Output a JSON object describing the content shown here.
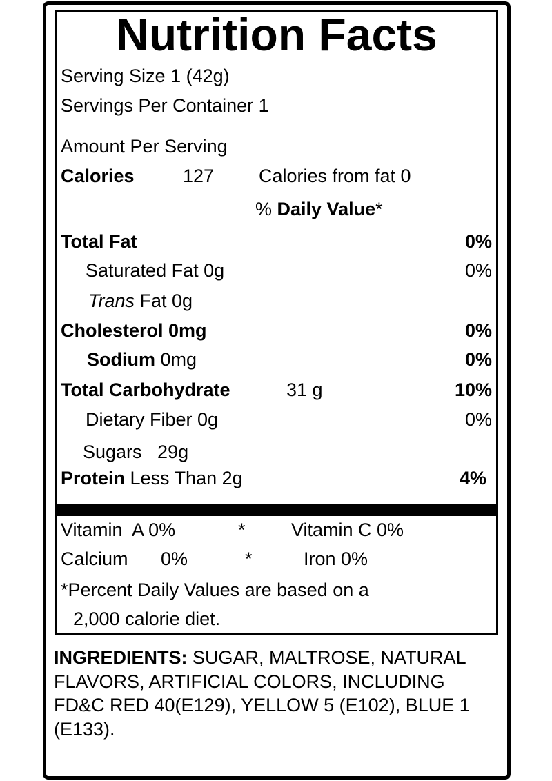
{
  "title": "Nutrition Facts",
  "serving_size": "Serving Size  1 (42g)",
  "servings_per_container": "Servings Per Container 1",
  "amount_per_serving": "Amount Per Serving",
  "calories": {
    "label": "Calories",
    "value": "127",
    "from_fat": "Calories from fat  0"
  },
  "daily_value_header": {
    "prefix": "% ",
    "label": "Daily Value",
    "suffix": "*"
  },
  "nutrients": [
    {
      "label": "Total Fat",
      "amount": "",
      "dv": "0%"
    },
    {
      "label": "Saturated Fat 0g",
      "dv": "0%"
    },
    {
      "label_italic": "Trans",
      "label": " Fat 0g",
      "dv": ""
    },
    {
      "label": "Cholesterol 0mg",
      "dv": "0%"
    },
    {
      "label": "Sodium",
      "amount": " 0mg",
      "dv": "0%"
    },
    {
      "label": "Total Carbohydrate",
      "amount": "31 g",
      "dv": "10%"
    },
    {
      "label": "Dietary Fiber 0g",
      "dv": "0%"
    },
    {
      "label": "Sugars   29g",
      "dv": ""
    },
    {
      "label": "Protein",
      "amount": " Less Than 2g",
      "dv": "4%"
    }
  ],
  "vitamins": [
    {
      "left": "Vitamin  A 0%",
      "sep": "*",
      "right": "Vitamin C 0%"
    },
    {
      "left": "Calcium",
      "left_value": "0%",
      "sep": "*",
      "right": "Iron 0%"
    }
  ],
  "footnote": [
    "*Percent Daily Values are based on a",
    "2,000 calorie diet."
  ],
  "ingredients": {
    "label": "INGREDIENTS:",
    "text": " SUGAR, MALTROSE, NATURAL FLAVORS, ARTIFICIAL COLORS, INCLUDING FD&C RED 40(E129), YELLOW 5 (E102), BLUE 1 (E133)."
  }
}
